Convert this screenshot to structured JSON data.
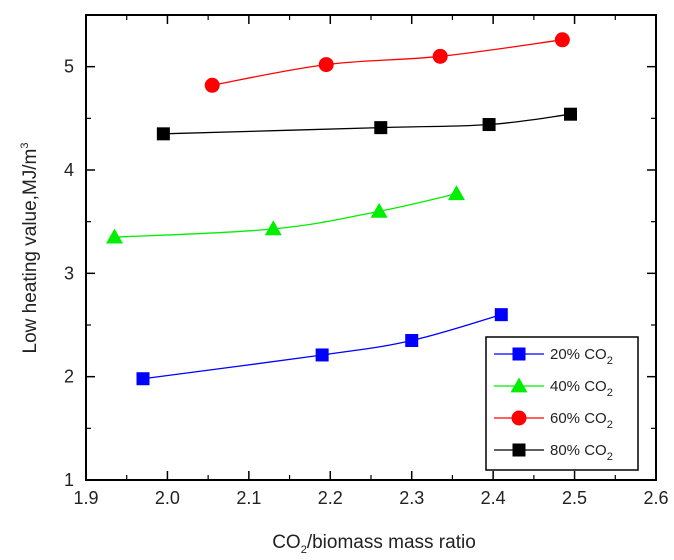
{
  "chart_data": {
    "type": "line",
    "title": "",
    "xlabel": {
      "prefix": "CO",
      "sub": "2",
      "suffix": "/biomass mass ratio"
    },
    "ylabel": {
      "prefix": "Low heating value,MJ/m",
      "sup": "3"
    },
    "xlim": [
      1.9,
      2.6
    ],
    "ylim": [
      1,
      5.5
    ],
    "xticks": [
      "1.9",
      "2.0",
      "2.1",
      "2.2",
      "2.3",
      "2.4",
      "2.5",
      "2.6"
    ],
    "yticks": [
      "1",
      "2",
      "3",
      "4",
      "5"
    ],
    "grid": false,
    "legend_position": "bottom-right",
    "series": [
      {
        "name": {
          "prefix": "20% CO",
          "sub": "2"
        },
        "color": "#0000ff",
        "marker": "square",
        "x": [
          1.97,
          2.19,
          2.3,
          2.41
        ],
        "y": [
          1.98,
          2.21,
          2.35,
          2.6
        ]
      },
      {
        "name": {
          "prefix": "40% CO",
          "sub": "2"
        },
        "color": "#00ee00",
        "marker": "triangle",
        "x": [
          1.935,
          2.13,
          2.26,
          2.355
        ],
        "y": [
          3.35,
          3.43,
          3.6,
          3.77
        ]
      },
      {
        "name": {
          "prefix": "60% CO",
          "sub": "2"
        },
        "color": "#ff0000",
        "marker": "circle",
        "x": [
          2.055,
          2.195,
          2.335,
          2.485
        ],
        "y": [
          4.82,
          5.02,
          5.1,
          5.26
        ]
      },
      {
        "name": {
          "prefix": "80% CO",
          "sub": "2"
        },
        "color": "#000000",
        "marker": "square",
        "x": [
          1.995,
          2.262,
          2.395,
          2.495
        ],
        "y": [
          4.35,
          4.41,
          4.44,
          4.54
        ]
      }
    ]
  }
}
